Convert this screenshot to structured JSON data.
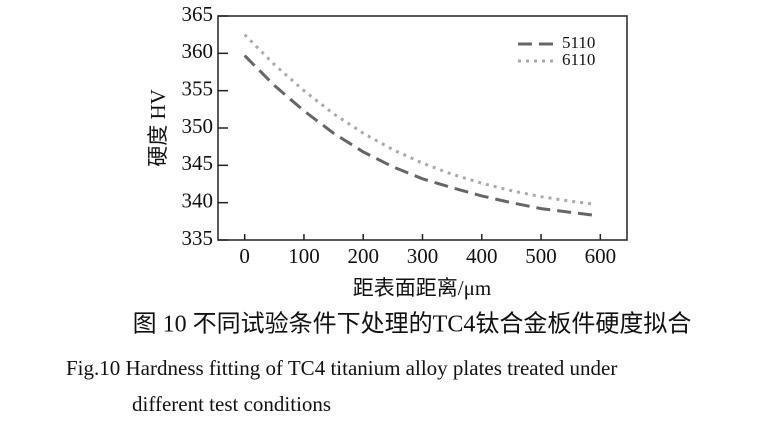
{
  "chart_data": {
    "type": "line",
    "y_label": "硬度 HV",
    "x_label": "距表面距离/μm",
    "x": [
      0,
      50,
      100,
      150,
      200,
      250,
      300,
      350,
      400,
      450,
      500,
      550,
      590
    ],
    "series": [
      {
        "name": "5110",
        "color": "#666666",
        "dash": "14 7",
        "values": [
          359.7,
          355.7,
          352.3,
          349.3,
          346.8,
          344.8,
          343.2,
          342.0,
          340.9,
          340.0,
          339.2,
          338.7,
          338.3
        ]
      },
      {
        "name": "6110",
        "color": "#aaaaaa",
        "dash": "3 5",
        "values": [
          362.5,
          358.5,
          355.0,
          351.9,
          349.3,
          347.1,
          345.3,
          343.8,
          342.6,
          341.6,
          340.8,
          340.2,
          339.8
        ]
      }
    ],
    "xlim": [
      -45,
      645
    ],
    "xticks": [
      0,
      100,
      200,
      300,
      400,
      500,
      600
    ],
    "ylim": [
      335,
      365
    ],
    "yticks": [
      335,
      340,
      345,
      350,
      355,
      360,
      365
    ],
    "legend": "upper right",
    "caption_zh": "图 10 不同试验条件下处理的TC4钛合金板件硬度拟合",
    "caption_en": [
      "Fig.10  Hardness fitting of TC4 titanium alloy plates treated under",
      "different test conditions"
    ]
  }
}
